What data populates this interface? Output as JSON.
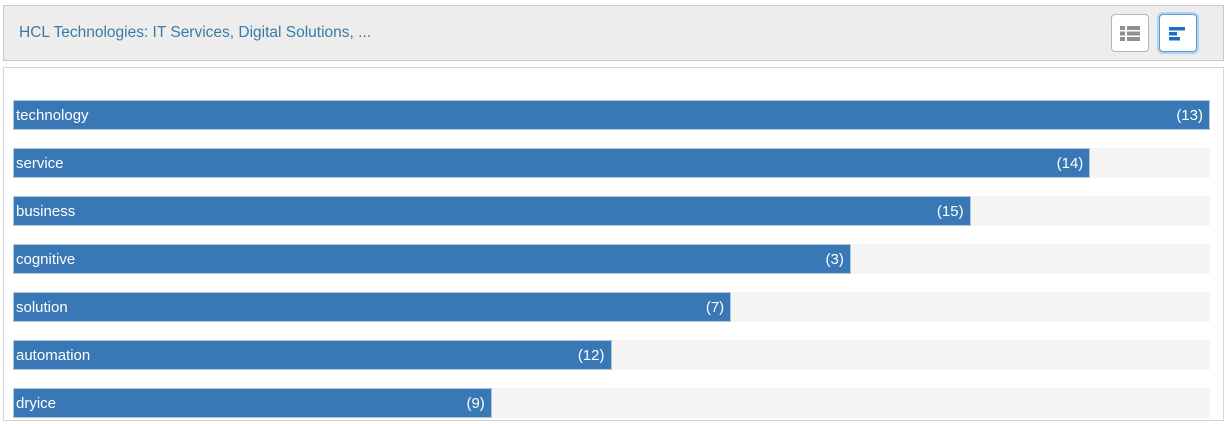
{
  "header": {
    "title": "HCL Technologies: IT Services, Digital Solutions, ...",
    "view_toggle": {
      "table_view_label": "table view",
      "bar_chart_view_label": "bar chart view",
      "active_view": "bar_chart_view"
    }
  },
  "colors": {
    "header_background": "#ededed",
    "header_text": "#3a7ba6",
    "bar_fill": "#3a77b5",
    "bar_track": "#f5f5f5",
    "bar_text": "#ffffff",
    "active_button_border": "#5e9ad3",
    "icon_gray": "#909090",
    "icon_blue": "#1b6fc0"
  },
  "chart_data": {
    "type": "bar",
    "orientation": "horizontal",
    "title": "",
    "xlabel": "",
    "ylabel": "",
    "legend": false,
    "grid": false,
    "categories": [
      "technology",
      "service",
      "business",
      "cognitive",
      "solution",
      "automation",
      "dryice"
    ],
    "values": [
      13,
      14,
      15,
      3,
      7,
      12,
      9
    ],
    "value_labels": [
      "(13)",
      "(14)",
      "(15)",
      "(3)",
      "(7)",
      "(12)",
      "(9)"
    ],
    "bar_length_pct": [
      100,
      90,
      80,
      70,
      60,
      50,
      40
    ]
  }
}
